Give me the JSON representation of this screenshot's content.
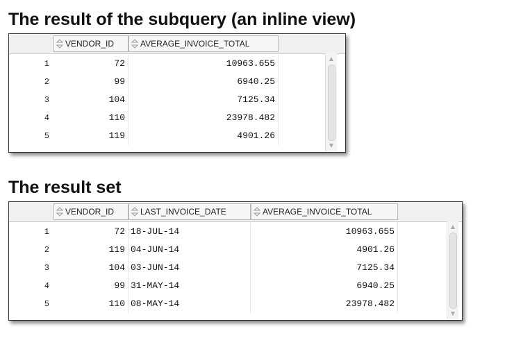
{
  "section1": {
    "title": "The result of the subquery (an inline view)",
    "columns": [
      "VENDOR_ID",
      "AVERAGE_INVOICE_TOTAL"
    ],
    "rows": [
      {
        "n": "1",
        "vendor_id": "72",
        "avg": "10963.655"
      },
      {
        "n": "2",
        "vendor_id": "99",
        "avg": "6940.25"
      },
      {
        "n": "3",
        "vendor_id": "104",
        "avg": "7125.34"
      },
      {
        "n": "4",
        "vendor_id": "110",
        "avg": "23978.482"
      },
      {
        "n": "5",
        "vendor_id": "119",
        "avg": "4901.26"
      }
    ]
  },
  "section2": {
    "title": "The result set",
    "columns": [
      "VENDOR_ID",
      "LAST_INVOICE_DATE",
      "AVERAGE_INVOICE_TOTAL"
    ],
    "rows": [
      {
        "n": "1",
        "vendor_id": "72",
        "date": "18-JUL-14",
        "avg": "10963.655"
      },
      {
        "n": "2",
        "vendor_id": "119",
        "date": "04-JUN-14",
        "avg": "4901.26"
      },
      {
        "n": "3",
        "vendor_id": "104",
        "date": "03-JUN-14",
        "avg": "7125.34"
      },
      {
        "n": "4",
        "vendor_id": "99",
        "date": "31-MAY-14",
        "avg": "6940.25"
      },
      {
        "n": "5",
        "vendor_id": "110",
        "date": "08-MAY-14",
        "avg": "23978.482"
      }
    ]
  },
  "icons": {
    "sort": "sort-arrows-icon",
    "scroll_up": "scroll-up-icon",
    "scroll_down": "scroll-down-icon"
  },
  "colors": {
    "header_bg": "#f0f0f0",
    "border": "#333333",
    "text": "#111111"
  }
}
